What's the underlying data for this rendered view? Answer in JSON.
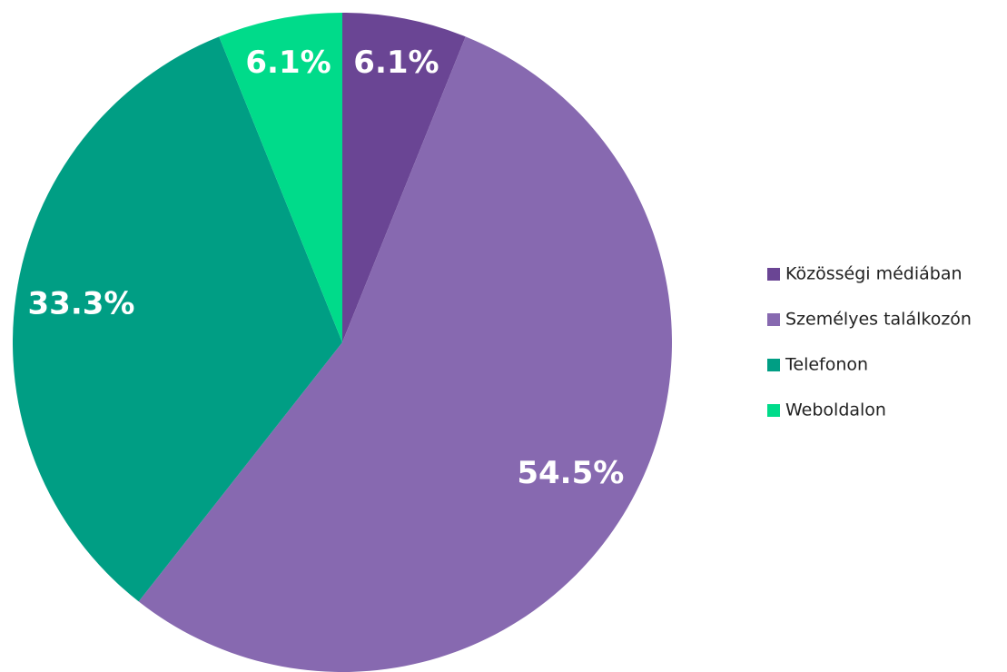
{
  "chart_data": {
    "type": "pie",
    "categories": [
      "Közösségi médiában",
      "Személyes találkozón",
      "Telefonon",
      "Weboldalon"
    ],
    "values": [
      6.1,
      54.5,
      33.3,
      6.1
    ],
    "value_labels": [
      "6.1%",
      "54.5%",
      "33.3%",
      "6.1%"
    ],
    "colors": [
      "#6a4594",
      "#8769b0",
      "#009e84",
      "#00db8a"
    ],
    "legend": "right"
  }
}
